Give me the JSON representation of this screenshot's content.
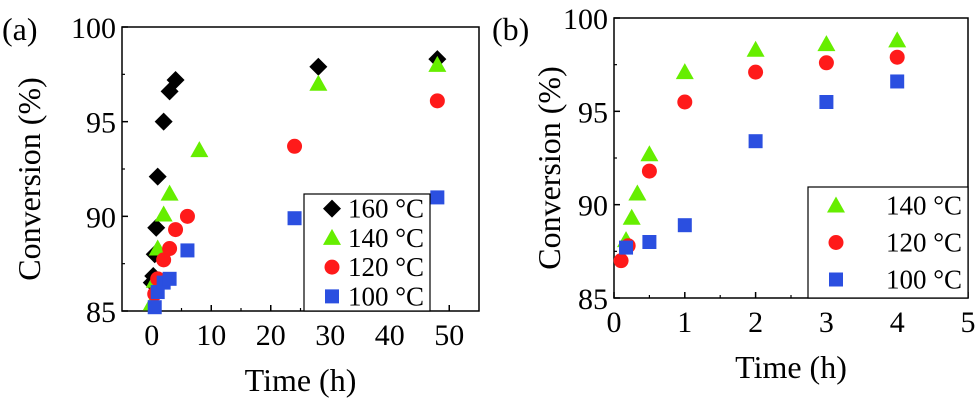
{
  "colors": {
    "160 °C": "#000000",
    "140 °C": "#66ee00",
    "120 °C": "#ff1a1a",
    "100 °C": "#2b4fe0"
  },
  "chart_data": [
    {
      "type": "scatter",
      "panel_label": "(a)",
      "xlabel": "Time (h)",
      "ylabel": "Conversion (%)",
      "xlim": [
        -5,
        55
      ],
      "ylim": [
        85,
        100
      ],
      "xticks": [
        0,
        10,
        20,
        30,
        40,
        50
      ],
      "yticks": [
        85,
        90,
        95,
        100
      ],
      "legend_position": "bottom-right",
      "grid": false,
      "series": [
        {
          "name": "160 °C",
          "marker": "diamond",
          "x": [
            0,
            0.25,
            0.5,
            0.75,
            1,
            2,
            3,
            4,
            28,
            48
          ],
          "y": [
            86.5,
            86.85,
            88.0,
            89.4,
            92.1,
            95.0,
            96.6,
            97.2,
            97.9,
            98.3
          ]
        },
        {
          "name": "140 °C",
          "marker": "triangle",
          "x": [
            0,
            0.5,
            1,
            2,
            3,
            8,
            28,
            48
          ],
          "y": [
            85.4,
            86.6,
            88.3,
            90.1,
            91.2,
            93.5,
            97.0,
            98.0
          ]
        },
        {
          "name": "120 °C",
          "marker": "circle",
          "x": [
            0.5,
            1,
            2,
            3,
            4,
            6,
            24,
            48
          ],
          "y": [
            85.9,
            86.7,
            87.7,
            88.3,
            89.3,
            90.0,
            93.7,
            96.1
          ]
        },
        {
          "name": "100 °C",
          "marker": "square",
          "x": [
            0.5,
            1,
            2,
            3,
            6,
            24,
            48
          ],
          "y": [
            85.2,
            86.0,
            86.5,
            86.7,
            88.2,
            89.9,
            91.0
          ]
        }
      ]
    },
    {
      "type": "scatter",
      "panel_label": "(b)",
      "xlabel": "Time (h)",
      "ylabel": "Conversion (%)",
      "xlim": [
        0,
        5
      ],
      "ylim": [
        85,
        100
      ],
      "xticks": [
        0,
        1,
        2,
        3,
        4,
        5
      ],
      "yticks": [
        85,
        90,
        95,
        100
      ],
      "legend_position": "bottom-right",
      "grid": false,
      "series": [
        {
          "name": "140 °C",
          "marker": "triangle",
          "x": [
            0.17,
            0.25,
            0.33,
            0.5,
            1,
            2,
            3,
            4
          ],
          "y": [
            88.1,
            89.3,
            90.6,
            92.7,
            97.1,
            98.3,
            98.6,
            98.8
          ]
        },
        {
          "name": "120 °C",
          "marker": "circle",
          "x": [
            0.1,
            0.2,
            0.5,
            1,
            2,
            3,
            4
          ],
          "y": [
            87.0,
            87.8,
            91.8,
            95.5,
            97.1,
            97.6,
            97.9
          ]
        },
        {
          "name": "100 °C",
          "marker": "square",
          "x": [
            0.17,
            0.5,
            1,
            2,
            3,
            4
          ],
          "y": [
            87.7,
            88.0,
            88.9,
            93.4,
            95.5,
            96.6
          ]
        }
      ]
    }
  ]
}
